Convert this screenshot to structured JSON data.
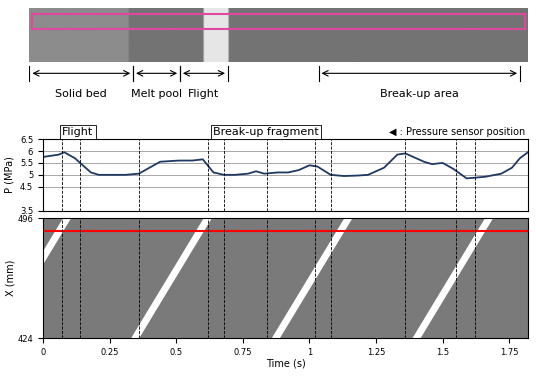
{
  "chart_data": [
    {
      "type": "line",
      "y_label": "P (MPa)",
      "x": [
        0,
        0.03,
        0.06,
        0.08,
        0.12,
        0.18,
        0.21,
        0.26,
        0.31,
        0.36,
        0.4,
        0.44,
        0.51,
        0.56,
        0.6,
        0.64,
        0.68,
        0.72,
        0.77,
        0.8,
        0.83,
        0.88,
        0.92,
        0.96,
        1.0,
        1.03,
        1.08,
        1.13,
        1.18,
        1.22,
        1.28,
        1.33,
        1.36,
        1.39,
        1.43,
        1.46,
        1.5,
        1.54,
        1.59,
        1.62,
        1.66,
        1.72,
        1.76,
        1.79,
        1.82
      ],
      "values": [
        5.75,
        5.8,
        5.85,
        5.95,
        5.7,
        5.1,
        5.0,
        5.0,
        5.0,
        5.05,
        5.3,
        5.55,
        5.6,
        5.6,
        5.65,
        5.1,
        5.0,
        5.0,
        5.05,
        5.15,
        5.05,
        5.1,
        5.1,
        5.2,
        5.4,
        5.35,
        5.0,
        4.95,
        4.97,
        5.0,
        5.3,
        5.85,
        5.9,
        5.75,
        5.55,
        5.45,
        5.5,
        5.25,
        4.85,
        4.88,
        4.92,
        5.05,
        5.3,
        5.7,
        5.95
      ],
      "color": "#1f3864",
      "xlim": [
        0,
        1.82
      ],
      "ylim": [
        3.5,
        6.5
      ],
      "yticks": [
        3.5,
        4.5,
        5,
        5.5,
        6,
        6.5
      ],
      "grid": true,
      "tick_labels": "y",
      "event_times": [
        0.07,
        0.14,
        0.36,
        0.62,
        0.68,
        0.84,
        1.02,
        1.08,
        1.36,
        1.55,
        1.62
      ],
      "annotations": [
        "Flight",
        "Break-up fragment",
        "◀ : Pressure sensor position"
      ],
      "region_labels": [
        "Solid bed",
        "Melt pool",
        "Flight",
        "Break-up area"
      ]
    },
    {
      "type": "image",
      "y_label": "X (mm)",
      "x_label": "Time (s)",
      "xlim": [
        0,
        1.82
      ],
      "xticks": [
        0,
        0.25,
        0.5,
        0.75,
        1,
        1.25,
        1.5,
        1.75
      ],
      "ylim": [
        424,
        496
      ],
      "yticks": [
        424,
        496
      ],
      "sensor_position": 488,
      "event_times": [
        0.07,
        0.14,
        0.36,
        0.62,
        0.68,
        0.84,
        1.02,
        1.08,
        1.36,
        1.55,
        1.62
      ]
    }
  ]
}
